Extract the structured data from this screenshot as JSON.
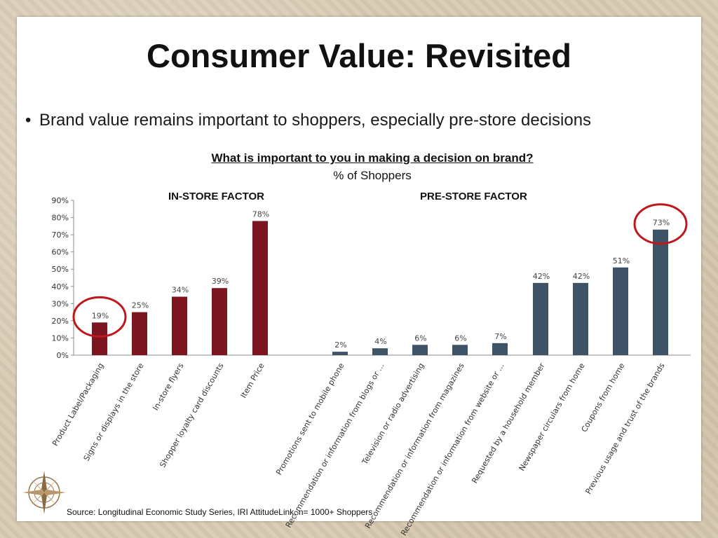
{
  "slide": {
    "title": "Consumer Value: Revisited",
    "bullet": "Brand value remains important to shoppers, especially pre-store decisions",
    "bullet_marker": "•",
    "chart_title": "What is important to you in making a decision on brand?",
    "chart_subtitle": "% of Shoppers",
    "in_store_label": "IN-STORE FACTOR",
    "pre_store_label": "PRE-STORE FACTOR",
    "source": "Source: Longitudinal Economic Study Series, IRI AttitudeLink,  n= 1000+  Shoppers"
  },
  "colors": {
    "in_store": "#7b1520",
    "pre_store": "#3f5367",
    "highlight_circle": "#c0161e"
  },
  "chart_data": {
    "type": "bar",
    "ylim": [
      0,
      90
    ],
    "yticks": [
      0,
      10,
      20,
      30,
      40,
      50,
      60,
      70,
      80,
      90
    ],
    "ytick_labels": [
      "0%",
      "10%",
      "20%",
      "30%",
      "40%",
      "50%",
      "60%",
      "70%",
      "80%",
      "90%"
    ],
    "grid": false,
    "categories": [
      "Product Label/Packaging",
      "Signs or displays in the store",
      "In-store flyers",
      "Shopper loyalty card discounts",
      "Item Price",
      "Promotions sent to mobile phone",
      "Recommendation or information from blogs or ...",
      "Television or radio advertising",
      "Recommendation or information from magazines",
      "Recommendation or information from website or ...",
      "Requested by a household member",
      "Newspaper circulars from home",
      "Coupons from home",
      "Previous usage and trust of the brands"
    ],
    "values": [
      19,
      25,
      34,
      39,
      78,
      2,
      4,
      6,
      6,
      7,
      42,
      42,
      51,
      73
    ],
    "value_labels": [
      "19%",
      "25%",
      "34%",
      "39%",
      "78%",
      "2%",
      "4%",
      "6%",
      "6%",
      "7%",
      "42%",
      "42%",
      "51%",
      "73%"
    ],
    "groups": [
      "in_store",
      "in_store",
      "in_store",
      "in_store",
      "in_store",
      "pre_store",
      "pre_store",
      "pre_store",
      "pre_store",
      "pre_store",
      "pre_store",
      "pre_store",
      "pre_store",
      "pre_store"
    ],
    "highlighted": [
      "Product Label/Packaging",
      "Previous usage and trust of the brands"
    ]
  }
}
